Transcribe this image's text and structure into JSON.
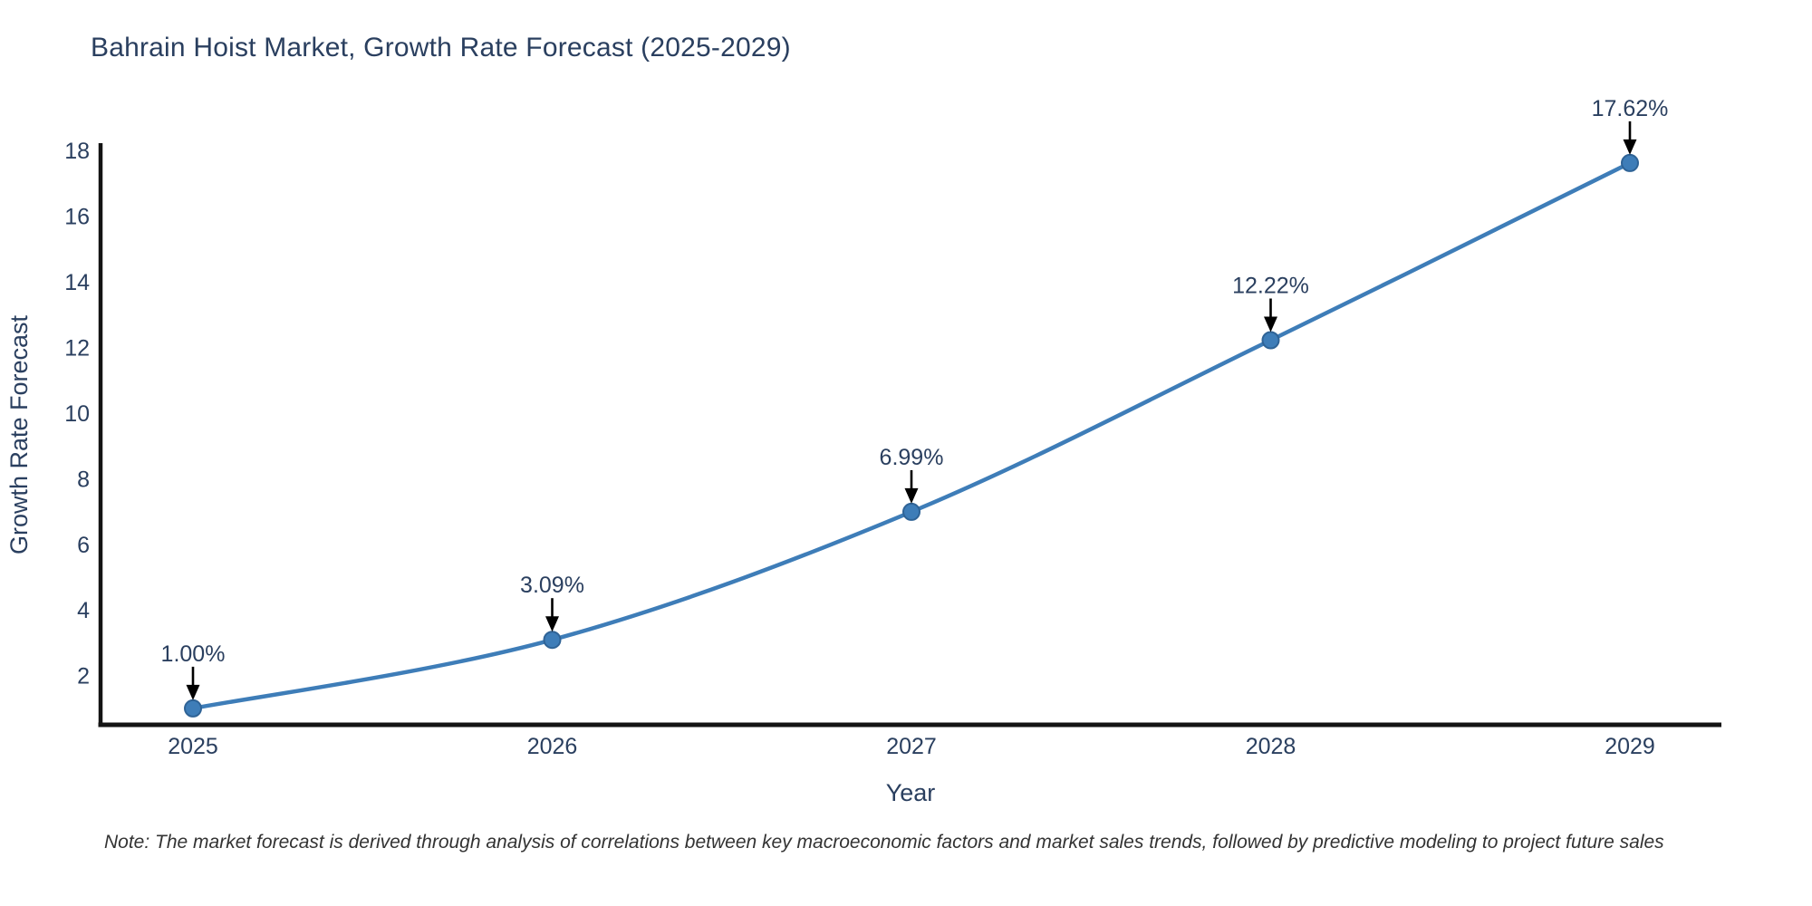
{
  "title": "Bahrain Hoist Market, Growth Rate Forecast (2025-2029)",
  "note": "Note: The market forecast is derived through analysis of correlations between key macroeconomic factors and market sales trends, followed by predictive modeling to project future sales",
  "chart_data": {
    "type": "line",
    "line_shape": "spline",
    "grid": false,
    "title": "Bahrain Hoist Market, Growth Rate Forecast (2025-2029)",
    "xlabel": "Year",
    "ylabel": "Growth Rate Forecast",
    "categories": [
      "2025",
      "2026",
      "2027",
      "2028",
      "2029"
    ],
    "series": [
      {
        "name": "Growth Rate Forecast",
        "values": [
          1.0,
          3.09,
          6.99,
          12.22,
          17.62
        ]
      }
    ],
    "point_labels": [
      "1.00%",
      "3.09%",
      "6.99%",
      "12.22%",
      "17.62%"
    ],
    "yticks": [
      2,
      4,
      6,
      8,
      10,
      12,
      14,
      16,
      18
    ],
    "ylim": [
      0.5,
      18.17
    ],
    "legend": "none",
    "colors": {
      "line": "#3e7db8",
      "marker_fill": "#3e7db8",
      "marker_edge": "#2f6396",
      "axis_line": "#141414",
      "tick_text": "#2a3f5f",
      "axis_title_text": "#2a3f5f",
      "annotation_text": "#2a3f5f",
      "annotation_arrow": "#000000"
    }
  }
}
